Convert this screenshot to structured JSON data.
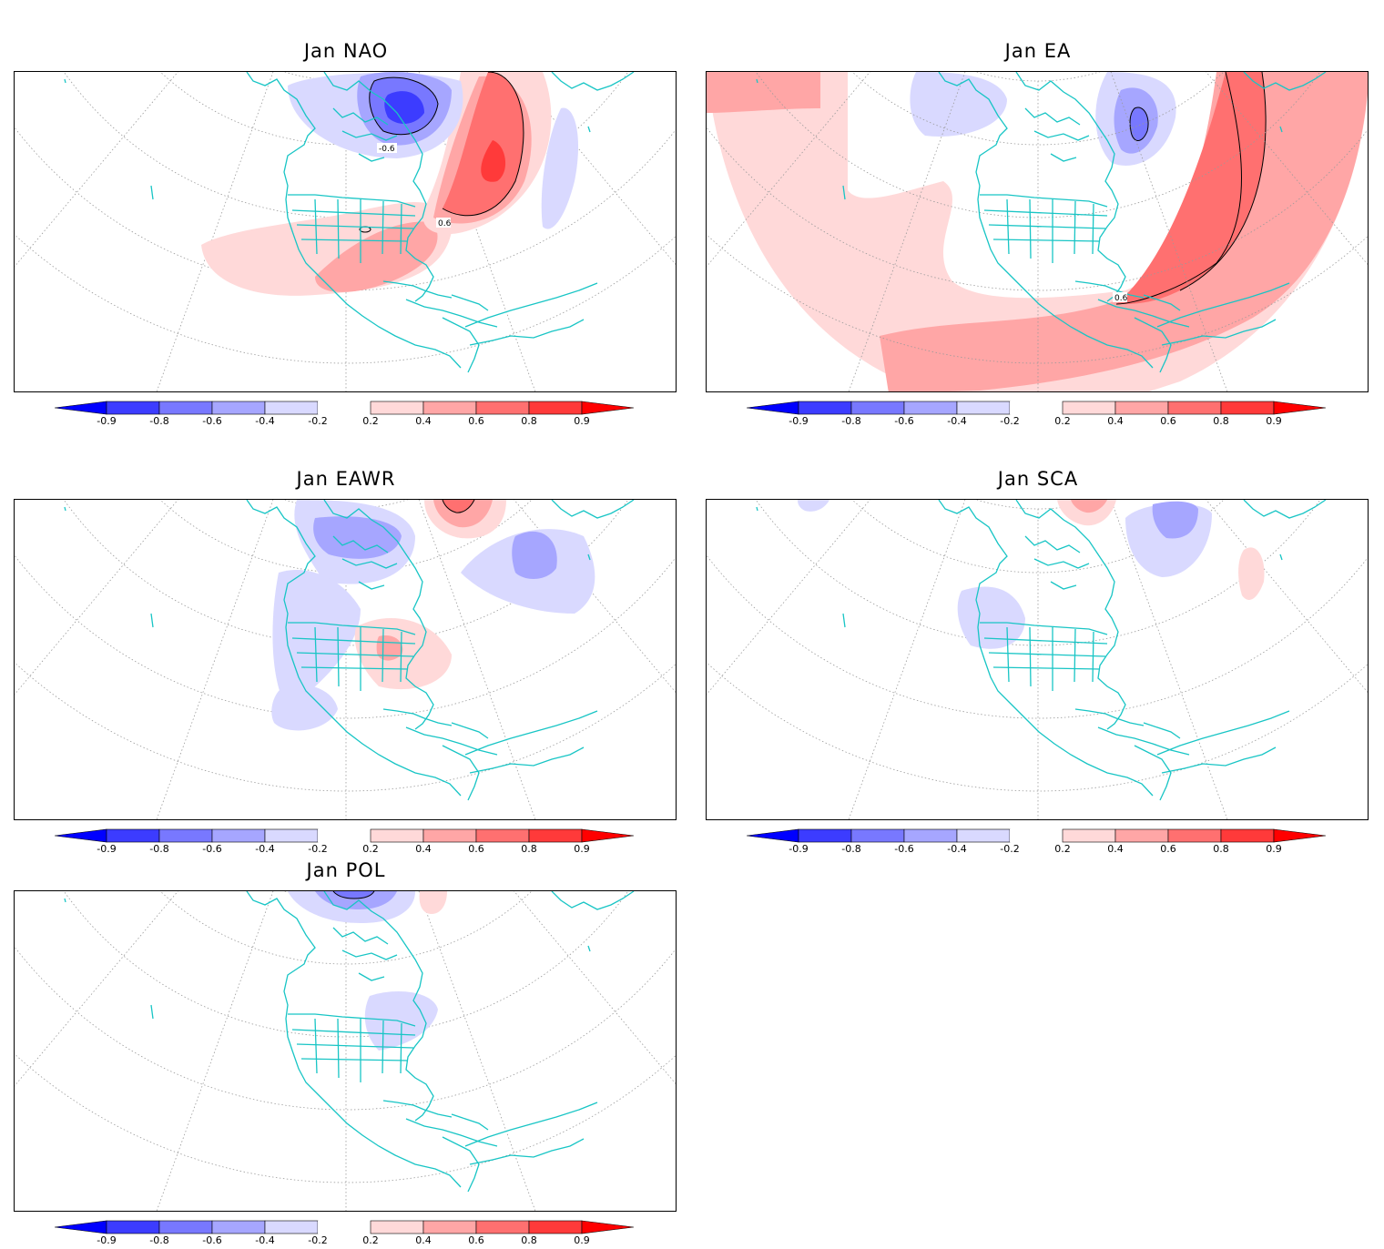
{
  "panels": [
    {
      "id": "nao",
      "title": "Jan NAO",
      "contour_labels": [
        "-0.6",
        "0.6"
      ]
    },
    {
      "id": "ea",
      "title": "Jan EA",
      "contour_labels": [
        "0.6"
      ]
    },
    {
      "id": "eawr",
      "title": "Jan EAWR",
      "contour_labels": []
    },
    {
      "id": "sca",
      "title": "Jan SCA",
      "contour_labels": []
    },
    {
      "id": "pol",
      "title": "Jan POL",
      "contour_labels": []
    }
  ],
  "colorbar": {
    "labels": [
      "-0.9",
      "-0.8",
      "-0.6",
      "-0.4",
      "-0.2",
      "0.2",
      "0.4",
      "0.6",
      "0.8",
      "0.9"
    ],
    "colors": [
      "#0000ff",
      "#3c3cff",
      "#7878ff",
      "#a6a6ff",
      "#d9d9ff",
      "#ffffff",
      "#ffd9d9",
      "#ffa6a6",
      "#ff7070",
      "#ff3a3a",
      "#ff0000"
    ]
  },
  "map_colors": {
    "coastline": "#18c5c5",
    "grid": "#9a9a9a"
  }
}
